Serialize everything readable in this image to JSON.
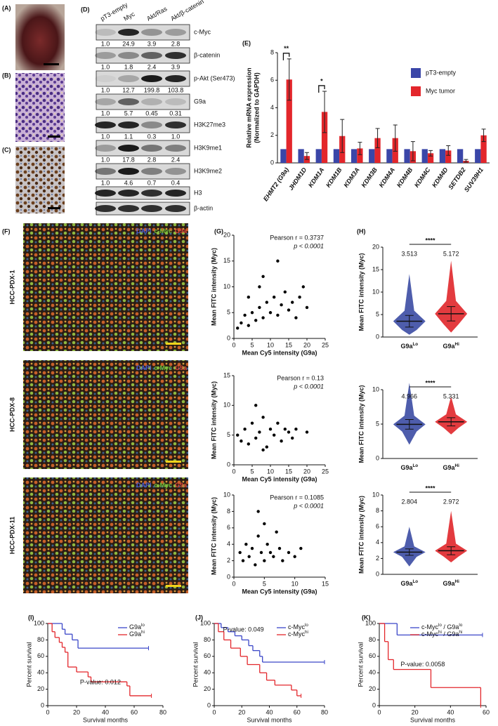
{
  "panel_labels": [
    "(A)",
    "(B)",
    "(C)",
    "(D)",
    "(E)",
    "(F)",
    "(G)",
    "(H)",
    "(I)",
    "(J)",
    "(K)"
  ],
  "blot": {
    "columns": [
      "pT3-empty",
      "Myc",
      "Akt/Ras",
      "Akt/β-catenin"
    ],
    "rows": [
      {
        "label": "c-Myc",
        "values": [
          "1.0",
          "24.9",
          "3.9",
          "2.8"
        ]
      },
      {
        "label": "β-catenin",
        "values": [
          "1.0",
          "1.8",
          "2.4",
          "3.9"
        ]
      },
      {
        "label": "p-Akt (Ser473)",
        "values": [
          "1.0",
          "12.7",
          "199.8",
          "103.8"
        ]
      },
      {
        "label": "G9a",
        "values": [
          "1.0",
          "5.7",
          "0.45",
          "0.31"
        ]
      },
      {
        "label": "H3K27me3",
        "values": [
          "1.0",
          "1.1",
          "0.3",
          "1.0"
        ]
      },
      {
        "label": "H3K9me1",
        "values": [
          "1.0",
          "17.8",
          "2.8",
          "2.4"
        ]
      },
      {
        "label": "H3K9me2",
        "values": [
          "1.0",
          "4.6",
          "0.7",
          "0.4"
        ]
      },
      {
        "label": "H3"
      },
      {
        "label": "β-actin"
      }
    ]
  },
  "if_images": [
    {
      "sample": "HCC-PDX-1",
      "stains": [
        "DAPI",
        "c-Myc",
        "G9a"
      ]
    },
    {
      "sample": "HCC-PDX-8",
      "stains": [
        "DAPI",
        "c-Myc",
        "G9a"
      ]
    },
    {
      "sample": "HCC-PDX-11",
      "stains": [
        "DAPI",
        "c-Myc",
        "G9a"
      ]
    }
  ],
  "chart_data": [
    {
      "type": "bar",
      "y_label": [
        "Relative mRNA expression",
        "(Normalized to GAPDH)"
      ],
      "categories": [
        "EHMT2 (G9a)",
        "JHDM1D",
        "KDM1A",
        "KDM1B",
        "KDM3A",
        "KDM3B",
        "KDM4A",
        "KDM4B",
        "KDM4C",
        "KDM4D",
        "SETDB2",
        "SUV39H1"
      ],
      "series": [
        {
          "name": "pT3-empty",
          "color": "#3a46a8",
          "values": [
            1,
            1,
            1,
            1,
            1,
            1,
            1,
            1,
            1,
            1,
            1,
            1
          ]
        },
        {
          "name": "Myc tumor",
          "color": "#e3262b",
          "values": [
            6.05,
            0.5,
            3.7,
            1.95,
            1.05,
            1.8,
            1.8,
            0.85,
            0.7,
            0.9,
            0.15,
            2.0
          ],
          "errors": [
            1.5,
            0.25,
            1.5,
            1.2,
            0.45,
            0.7,
            0.95,
            0.7,
            0.2,
            0.35,
            0.1,
            0.45
          ]
        }
      ],
      "annotations": [
        {
          "text": "**",
          "category": 0
        },
        {
          "text": "*",
          "category": 2
        }
      ],
      "ylim": [
        0,
        8
      ],
      "yticks": [
        0,
        2,
        4,
        6,
        8
      ]
    },
    {
      "type": "scatter",
      "x_label": "Mean Cy5 intensity (G9a)",
      "y_label": "Mean FITC intensity (Myc)",
      "annotations": [
        "Pearson r = 0.3737",
        "p < 0.0001"
      ],
      "xlim": [
        0,
        25
      ],
      "xticks": [
        0,
        5,
        10,
        15,
        20,
        25
      ],
      "ylim": [
        0,
        20
      ],
      "yticks": [
        0,
        5,
        10,
        15,
        20
      ],
      "x": [
        1,
        2,
        3,
        4,
        5,
        6,
        7,
        8,
        9,
        10,
        11,
        12,
        13,
        14,
        15,
        16,
        17,
        18,
        19,
        20,
        8,
        12,
        7,
        4
      ],
      "y": [
        2,
        3,
        4.5,
        2.5,
        5,
        3.5,
        6,
        4,
        7,
        5,
        8,
        4.5,
        6.5,
        9,
        5.5,
        7,
        4,
        8,
        10,
        6,
        12,
        15,
        10,
        8
      ]
    },
    {
      "type": "scatter",
      "x_label": "Mean Cy5 intensity (G9a)",
      "y_label": "Mean FITC intensity (Myc)",
      "annotations": [
        "Pearson r = 0.13",
        "p < 0.0001"
      ],
      "xlim": [
        0,
        25
      ],
      "xticks": [
        0,
        5,
        10,
        15,
        20,
        25
      ],
      "ylim": [
        0,
        15
      ],
      "yticks": [
        0,
        5,
        10,
        15
      ],
      "x": [
        1,
        2,
        3,
        4,
        5,
        6,
        7,
        8,
        9,
        10,
        11,
        12,
        13,
        14,
        15,
        16,
        17,
        20,
        6,
        8
      ],
      "y": [
        5,
        4,
        6,
        3.5,
        7,
        4.5,
        5.5,
        8,
        3,
        6,
        5,
        7,
        4,
        6,
        5.5,
        4.5,
        6,
        5.5,
        10,
        2.5
      ]
    },
    {
      "type": "scatter",
      "x_label": "Mean Cy5 intensity (G9a)",
      "y_label": "Mean FITC intensity (Myc)",
      "annotations": [
        "Pearson r = 0.1085",
        "p < 0.0001"
      ],
      "xlim": [
        0,
        15
      ],
      "xticks": [
        0,
        5,
        10,
        15
      ],
      "ylim": [
        0,
        10
      ],
      "yticks": [
        0,
        2,
        4,
        6,
        8,
        10
      ],
      "x": [
        1,
        1.5,
        2,
        2.5,
        3,
        3.5,
        4,
        4.5,
        5,
        5.5,
        6,
        6.5,
        7,
        7.5,
        8,
        9,
        10,
        11,
        4,
        5
      ],
      "y": [
        3,
        2,
        4,
        2.5,
        3.5,
        1.5,
        5,
        3,
        2,
        4,
        3,
        2.5,
        5.5,
        3.5,
        2,
        3,
        2.5,
        3.5,
        8,
        6.5
      ]
    },
    {
      "type": "dotplot",
      "y_label": "Mean FITC intensity (Myc)",
      "significance": "****",
      "categories": [
        [
          "G9a",
          "Lo"
        ],
        [
          "G9a",
          "Hi"
        ]
      ],
      "colors": [
        "#3b4ba3",
        "#e0262a"
      ],
      "means": [
        3.513,
        5.172
      ],
      "sds": [
        1.3,
        1.6
      ],
      "mins": [
        0.5,
        1
      ],
      "maxs": [
        14,
        17
      ],
      "ylim": [
        0,
        20
      ],
      "yticks": [
        0,
        5,
        10,
        15,
        20
      ]
    },
    {
      "type": "dotplot",
      "y_label": "Mean FITC intensity (Myc)",
      "significance": "****",
      "categories": [
        [
          "G9a",
          "Lo"
        ],
        [
          "G9a",
          "Hi"
        ]
      ],
      "colors": [
        "#3b4ba3",
        "#e0262a"
      ],
      "means": [
        4.966,
        5.331
      ],
      "sds": [
        0.7,
        0.6
      ],
      "mins": [
        2,
        3.5
      ],
      "maxs": [
        11,
        9
      ],
      "ylim": [
        0,
        10
      ],
      "yticks": [
        0,
        5,
        10
      ]
    },
    {
      "type": "dotplot",
      "y_label": "Mean FITC intensity (Myc)",
      "significance": "****",
      "categories": [
        [
          "G9a",
          "Lo"
        ],
        [
          "G9a",
          "Hi"
        ]
      ],
      "colors": [
        "#3b4ba3",
        "#e0262a"
      ],
      "means": [
        2.804,
        2.972
      ],
      "sds": [
        0.4,
        0.5
      ],
      "mins": [
        1,
        1.5
      ],
      "maxs": [
        6,
        8
      ],
      "ylim": [
        0,
        10
      ],
      "yticks": [
        0,
        2,
        4,
        6,
        8,
        10
      ]
    },
    {
      "type": "survival",
      "x_label": "Survival months",
      "y_label": "Percent survival",
      "p_text": "P-value: 0.012",
      "xlim": [
        0,
        80
      ],
      "xticks": [
        0,
        20,
        40,
        60,
        80
      ],
      "ylim": [
        0,
        100
      ],
      "yticks": [
        0,
        20,
        40,
        60,
        80,
        100
      ],
      "series": [
        {
          "name": [
            "G9a",
            "lo"
          ],
          "color": "#3a46c8",
          "x": [
            0,
            10,
            12,
            17,
            21,
            70
          ],
          "y": [
            100,
            93,
            87,
            80,
            70,
            70
          ]
        },
        {
          "name": [
            "G9a",
            "hi"
          ],
          "color": "#e3262b",
          "x": [
            0,
            3,
            5,
            8,
            10,
            12,
            14,
            20,
            28,
            30,
            55,
            57,
            72
          ],
          "y": [
            100,
            90,
            83,
            77,
            71,
            65,
            47,
            41,
            35,
            29,
            24,
            12,
            12
          ]
        }
      ]
    },
    {
      "type": "survival",
      "x_label": "Survival months",
      "y_label": "Percent survival",
      "p_text": "P-value: 0.049",
      "xlim": [
        0,
        80
      ],
      "xticks": [
        0,
        20,
        40,
        60,
        80
      ],
      "ylim": [
        0,
        100
      ],
      "yticks": [
        0,
        20,
        40,
        60,
        80,
        100
      ],
      "series": [
        {
          "name": [
            "c-Myc",
            "lo"
          ],
          "color": "#3a46c8",
          "x": [
            0,
            5,
            10,
            15,
            20,
            25,
            28,
            33,
            35,
            80
          ],
          "y": [
            100,
            95,
            90,
            85,
            80,
            73,
            67,
            60,
            53,
            53
          ]
        },
        {
          "name": [
            "c-Myc",
            "hi"
          ],
          "color": "#e3262b",
          "x": [
            0,
            3,
            7,
            12,
            19,
            24,
            33,
            38,
            44,
            56,
            60,
            63
          ],
          "y": [
            100,
            90,
            80,
            70,
            60,
            50,
            40,
            31,
            25,
            19,
            12,
            12
          ]
        }
      ]
    },
    {
      "type": "survival",
      "x_label": "Survival months",
      "y_label": "Percent survival",
      "p_text": "P-value: 0.0058",
      "xlim": [
        0,
        60
      ],
      "xticks": [
        0,
        20,
        40,
        60
      ],
      "ylim": [
        0,
        100
      ],
      "yticks": [
        0,
        20,
        40,
        60,
        80,
        100
      ],
      "series": [
        {
          "name": [
            "c-Myc",
            "lo",
            " / G9a",
            "lo"
          ],
          "color": "#3a46c8",
          "x": [
            0,
            10,
            58
          ],
          "y": [
            100,
            86,
            86
          ]
        },
        {
          "name": [
            "c-Myc",
            "hi",
            " / G9a",
            "hi"
          ],
          "color": "#e3262b",
          "x": [
            0,
            3,
            5,
            8,
            12,
            29,
            56,
            57
          ],
          "y": [
            100,
            78,
            56,
            44,
            44,
            22,
            22,
            0
          ]
        }
      ]
    }
  ]
}
